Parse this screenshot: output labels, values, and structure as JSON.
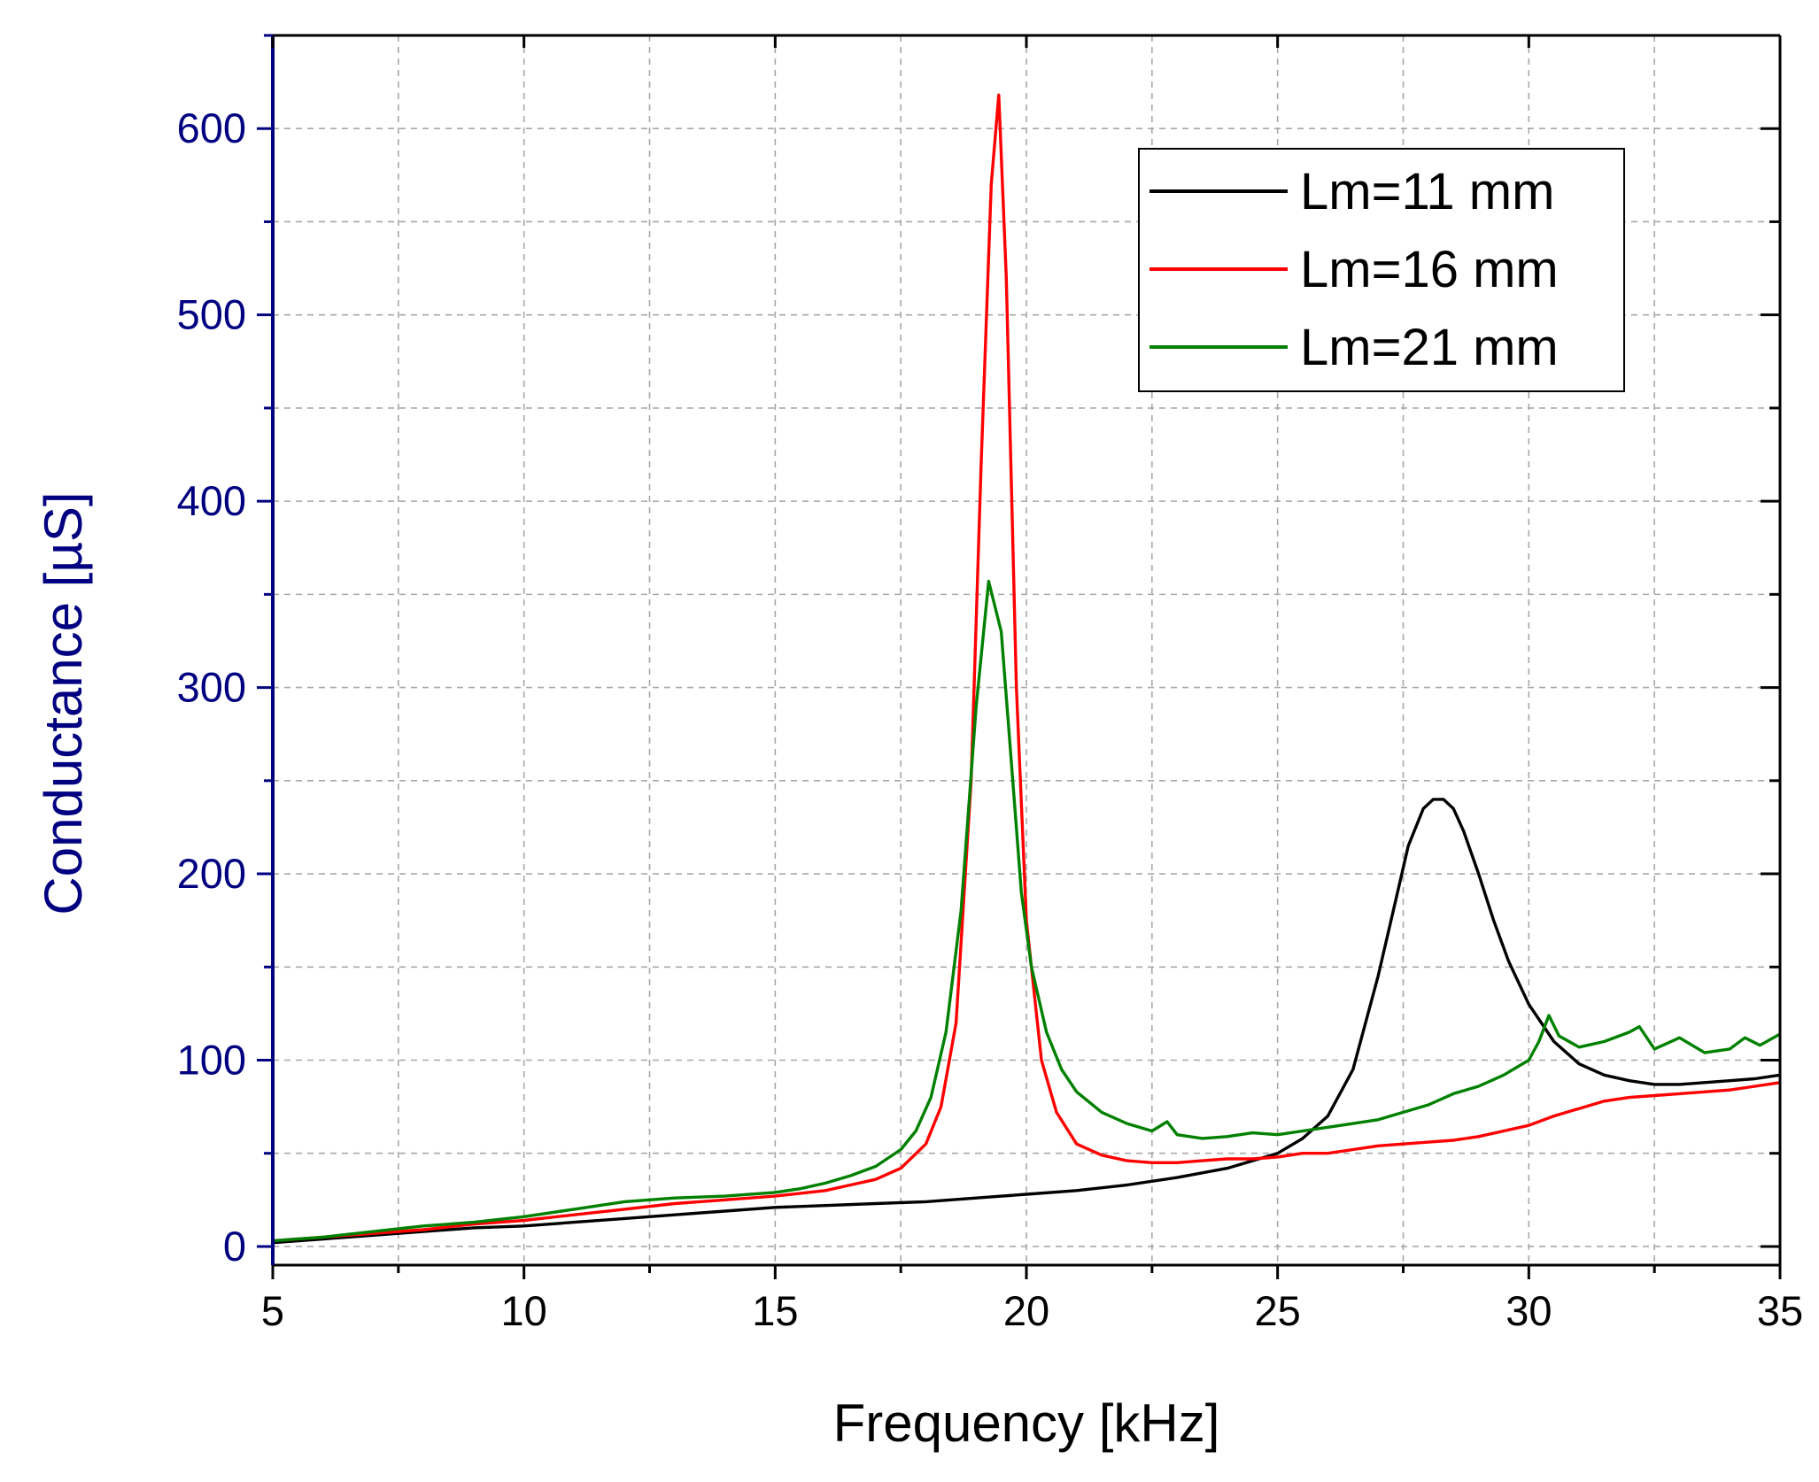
{
  "chart_data": {
    "type": "line",
    "title": "",
    "xlabel": "Frequency [kHz]",
    "ylabel": "Conductance [µS]",
    "xlim": [
      5,
      35
    ],
    "ylim": [
      -10,
      650
    ],
    "xticks": [
      5,
      10,
      15,
      20,
      25,
      30,
      35
    ],
    "xtick_labels": [
      "5",
      "10",
      "15",
      "20",
      "25",
      "30",
      "35"
    ],
    "yticks": [
      0,
      100,
      200,
      300,
      400,
      500,
      600
    ],
    "ytick_labels": [
      "0",
      "100",
      "200",
      "300",
      "400",
      "500",
      "600"
    ],
    "grid": true,
    "legend_position": "top-right",
    "colors": {
      "axis_left": "#000080",
      "frame": "#000000",
      "grid": "#a8a8a8"
    },
    "series": [
      {
        "name": "Lm=11 mm",
        "color": "#000000",
        "x": [
          5,
          6,
          7,
          8,
          9,
          10,
          11,
          12,
          13,
          14,
          15,
          16,
          17,
          18,
          19,
          20,
          21,
          22,
          23,
          24,
          25,
          25.5,
          26,
          26.5,
          27,
          27.3,
          27.6,
          27.9,
          28.1,
          28.3,
          28.5,
          28.7,
          29,
          29.3,
          29.6,
          30,
          30.5,
          31,
          31.5,
          32,
          32.5,
          33,
          33.5,
          34,
          34.5,
          35
        ],
        "y": [
          2,
          4,
          6,
          8,
          10,
          11,
          13,
          15,
          17,
          19,
          21,
          22,
          23,
          24,
          26,
          28,
          30,
          33,
          37,
          42,
          50,
          58,
          70,
          95,
          145,
          180,
          215,
          235,
          240,
          240,
          235,
          223,
          200,
          175,
          153,
          130,
          110,
          98,
          92,
          89,
          87,
          87,
          88,
          89,
          90,
          92
        ]
      },
      {
        "name": "Lm=16 mm",
        "color": "#ff0000",
        "x": [
          5,
          6,
          7,
          8,
          9,
          10,
          11,
          12,
          13,
          14,
          15,
          16,
          16.5,
          17,
          17.5,
          18,
          18.3,
          18.6,
          18.9,
          19.1,
          19.3,
          19.45,
          19.6,
          19.8,
          20,
          20.3,
          20.6,
          21,
          21.5,
          22,
          22.5,
          23,
          23.5,
          24,
          24.5,
          25,
          25.5,
          26,
          26.5,
          27,
          27.5,
          28,
          28.5,
          29,
          29.5,
          30,
          30.5,
          31,
          31.5,
          32,
          32.5,
          33,
          33.5,
          34,
          34.5,
          35
        ],
        "y": [
          3,
          5,
          7,
          9,
          12,
          14,
          17,
          20,
          23,
          25,
          27,
          30,
          33,
          36,
          42,
          55,
          75,
          120,
          250,
          420,
          570,
          618,
          520,
          300,
          175,
          100,
          72,
          55,
          49,
          46,
          45,
          45,
          46,
          47,
          47,
          48,
          50,
          50,
          52,
          54,
          55,
          56,
          57,
          59,
          62,
          65,
          70,
          74,
          78,
          80,
          81,
          82,
          83,
          84,
          86,
          88
        ]
      },
      {
        "name": "Lm=21 mm",
        "color": "#008000",
        "x": [
          5,
          6,
          7,
          8,
          9,
          10,
          11,
          12,
          13,
          14,
          15,
          15.5,
          16,
          16.5,
          17,
          17.5,
          17.8,
          18.1,
          18.4,
          18.7,
          19,
          19.25,
          19.5,
          19.7,
          19.9,
          20.1,
          20.4,
          20.7,
          21,
          21.5,
          22,
          22.5,
          22.8,
          23,
          23.5,
          24,
          24.5,
          25,
          25.5,
          26,
          26.5,
          27,
          27.5,
          28,
          28.5,
          29,
          29.5,
          30,
          30.2,
          30.4,
          30.6,
          31,
          31.5,
          32,
          32.2,
          32.5,
          33,
          33.5,
          34,
          34.3,
          34.6,
          35
        ],
        "y": [
          3,
          5,
          8,
          11,
          13,
          16,
          20,
          24,
          26,
          27,
          29,
          31,
          34,
          38,
          43,
          52,
          62,
          80,
          115,
          180,
          290,
          357,
          330,
          260,
          190,
          150,
          115,
          95,
          83,
          72,
          66,
          62,
          67,
          60,
          58,
          59,
          61,
          60,
          62,
          64,
          66,
          68,
          72,
          76,
          82,
          86,
          92,
          100,
          110,
          124,
          113,
          107,
          110,
          115,
          118,
          106,
          112,
          104,
          106,
          112,
          108,
          114
        ]
      }
    ]
  }
}
